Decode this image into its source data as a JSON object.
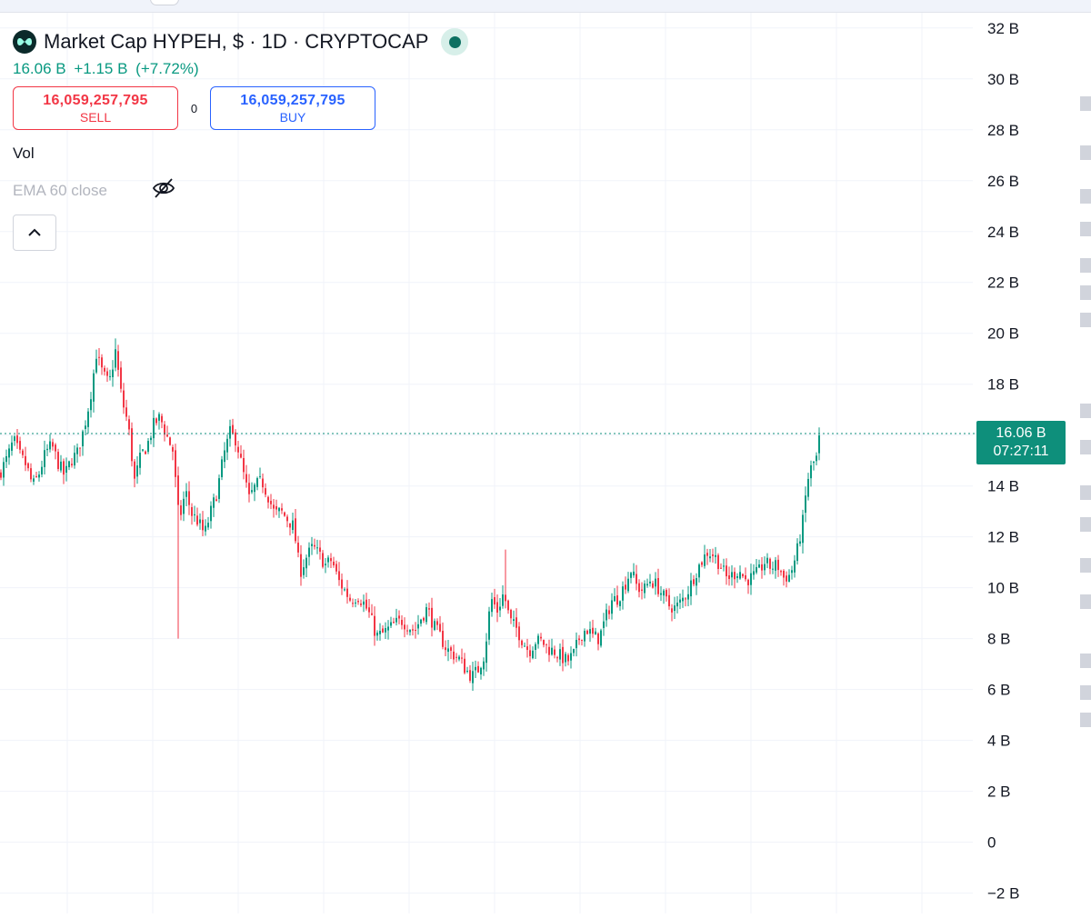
{
  "header": {
    "title": "Market Cap HYPEH, $ · 1D · CRYPTOCAP",
    "last_value": "16.06 B",
    "change_abs": "+1.15 B",
    "change_pct": "(+7.72%)"
  },
  "trade": {
    "sell_price": "16,059,257,795",
    "sell_label": "SELL",
    "spread": "0",
    "buy_price": "16,059,257,795",
    "buy_label": "BUY"
  },
  "indicators": {
    "vol_label": "Vol",
    "ema_label": "EMA 60 close"
  },
  "price_tag": {
    "value": "16.06 B",
    "countdown": "07:27:11"
  },
  "colors": {
    "up": "#089981",
    "down": "#f23645",
    "grid": "#f0f3fa",
    "accent": "#0e8f7b"
  },
  "chart_data": {
    "type": "candlestick",
    "unit": "B",
    "ylim": [
      -2.8,
      32.6
    ],
    "y_ticks": [
      32,
      30,
      28,
      26,
      24,
      22,
      20,
      18,
      16,
      14,
      12,
      10,
      8,
      6,
      4,
      2,
      0,
      -2
    ],
    "y_tick_labels": [
      "32 B",
      "30 B",
      "28 B",
      "26 B",
      "24 B",
      "22 B",
      "20 B",
      "18 B",
      "16 B",
      "14 B",
      "12 B",
      "10 B",
      "8 B",
      "6 B",
      "4 B",
      "2 B",
      "0",
      "−2 B"
    ],
    "grid": true,
    "last_price": 16.06,
    "close_path": [
      [
        0,
        14.6
      ],
      [
        7,
        15.1
      ],
      [
        14,
        15.8
      ],
      [
        21,
        15.2
      ],
      [
        28,
        14.8
      ],
      [
        35,
        14.0
      ],
      [
        42,
        14.5
      ],
      [
        49,
        15.3
      ],
      [
        56,
        15.6
      ],
      [
        63,
        14.9
      ],
      [
        70,
        14.4
      ],
      [
        77,
        15.0
      ],
      [
        84,
        15.3
      ],
      [
        91,
        16.2
      ],
      [
        98,
        17.4
      ],
      [
        105,
        19.2
      ],
      [
        112,
        18.4
      ],
      [
        119,
        18.0
      ],
      [
        126,
        19.3
      ],
      [
        133,
        17.4
      ],
      [
        140,
        16.4
      ],
      [
        147,
        14.2
      ],
      [
        154,
        15.2
      ],
      [
        161,
        15.6
      ],
      [
        168,
        16.4
      ],
      [
        175,
        16.7
      ],
      [
        182,
        16.0
      ],
      [
        189,
        15.4
      ],
      [
        196,
        12.6
      ],
      [
        203,
        13.8
      ],
      [
        210,
        12.9
      ],
      [
        217,
        12.6
      ],
      [
        224,
        12.1
      ],
      [
        231,
        13.0
      ],
      [
        238,
        13.8
      ],
      [
        245,
        15.2
      ],
      [
        252,
        16.1
      ],
      [
        259,
        15.8
      ],
      [
        266,
        14.6
      ],
      [
        273,
        13.5
      ],
      [
        280,
        14.0
      ],
      [
        287,
        14.2
      ],
      [
        294,
        13.6
      ],
      [
        301,
        12.9
      ],
      [
        308,
        13.0
      ],
      [
        315,
        12.7
      ],
      [
        322,
        12.4
      ],
      [
        329,
        10.6
      ],
      [
        336,
        11.2
      ],
      [
        343,
        11.6
      ],
      [
        350,
        11.3
      ],
      [
        357,
        10.9
      ],
      [
        364,
        11.1
      ],
      [
        371,
        10.3
      ],
      [
        378,
        9.9
      ],
      [
        385,
        9.5
      ],
      [
        392,
        9.7
      ],
      [
        399,
        9.4
      ],
      [
        406,
        8.9
      ],
      [
        413,
        8.1
      ],
      [
        420,
        8.2
      ],
      [
        427,
        8.4
      ],
      [
        434,
        8.6
      ],
      [
        441,
        8.7
      ],
      [
        448,
        8.5
      ],
      [
        455,
        8.3
      ],
      [
        462,
        8.8
      ],
      [
        469,
        9.2
      ],
      [
        476,
        8.5
      ],
      [
        483,
        8.1
      ],
      [
        490,
        7.6
      ],
      [
        497,
        7.4
      ],
      [
        504,
        7.2
      ],
      [
        511,
        6.8
      ],
      [
        518,
        6.5
      ],
      [
        525,
        6.8
      ],
      [
        532,
        7.4
      ],
      [
        539,
        9.6
      ],
      [
        546,
        9.1
      ],
      [
        553,
        9.8
      ],
      [
        560,
        8.7
      ],
      [
        567,
        8.4
      ],
      [
        574,
        7.9
      ],
      [
        581,
        7.5
      ],
      [
        588,
        7.9
      ],
      [
        595,
        7.9
      ],
      [
        602,
        7.6
      ],
      [
        609,
        7.5
      ],
      [
        616,
        7.3
      ],
      [
        623,
        7.1
      ],
      [
        630,
        7.4
      ],
      [
        637,
        8.1
      ],
      [
        644,
        8.4
      ],
      [
        651,
        8.1
      ],
      [
        658,
        8.0
      ],
      [
        665,
        8.8
      ],
      [
        672,
        9.5
      ],
      [
        679,
        9.6
      ],
      [
        686,
        10.1
      ],
      [
        693,
        10.7
      ],
      [
        700,
        10.0
      ],
      [
        707,
        9.9
      ],
      [
        714,
        10.3
      ],
      [
        721,
        10.1
      ],
      [
        728,
        9.7
      ],
      [
        735,
        9.3
      ],
      [
        742,
        9.2
      ],
      [
        749,
        9.5
      ],
      [
        756,
        9.9
      ],
      [
        763,
        10.5
      ],
      [
        770,
        11.0
      ],
      [
        777,
        11.4
      ],
      [
        784,
        11.3
      ],
      [
        791,
        10.9
      ],
      [
        798,
        10.4
      ],
      [
        805,
        10.5
      ],
      [
        812,
        10.7
      ],
      [
        819,
        10.3
      ],
      [
        826,
        10.4
      ],
      [
        833,
        10.6
      ],
      [
        840,
        11.0
      ],
      [
        847,
        10.8
      ],
      [
        854,
        10.9
      ],
      [
        861,
        10.4
      ],
      [
        868,
        10.5
      ],
      [
        875,
        11.3
      ],
      [
        882,
        12.6
      ],
      [
        887,
        14.2
      ],
      [
        892,
        14.8
      ],
      [
        897,
        15.1
      ],
      [
        901,
        16.06
      ]
    ],
    "notable_wicks": [
      {
        "x": 196,
        "low": 8.0
      },
      {
        "x": 556,
        "high": 11.5
      },
      {
        "x": 127,
        "high": 19.8
      },
      {
        "x": 901,
        "high": 16.3
      }
    ]
  }
}
